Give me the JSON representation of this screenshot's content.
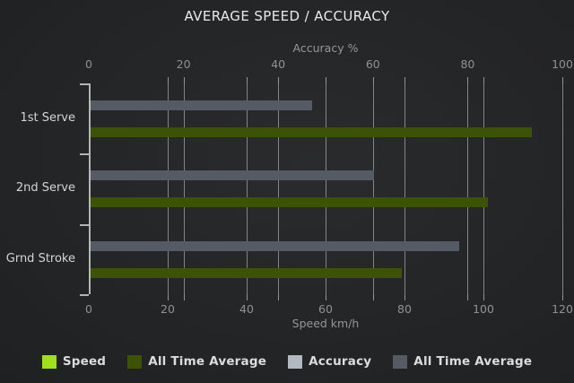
{
  "chart_data": {
    "type": "bar",
    "orientation": "horizontal",
    "title": "AVERAGE SPEED / ACCURACY",
    "categories": [
      "1st Serve",
      "2nd Serve",
      "Grnd Stroke"
    ],
    "series": [
      {
        "name": "Speed",
        "axis": "bottom",
        "color": "#9ee01a",
        "values": [
          null,
          null,
          null
        ]
      },
      {
        "name": "All Time Average",
        "axis": "bottom",
        "color": "#3c5205",
        "values": [
          112,
          101,
          79
        ]
      },
      {
        "name": "Accuracy",
        "axis": "top",
        "color": "#b2bac1",
        "values": [
          null,
          null,
          null
        ]
      },
      {
        "name": "All Time Average",
        "axis": "top",
        "color": "#545b64",
        "values": [
          47,
          60,
          78
        ]
      }
    ],
    "axes": {
      "top": {
        "label": "Accuracy %",
        "min": 0,
        "max": 100,
        "ticks": [
          0,
          20,
          40,
          60,
          80,
          100
        ]
      },
      "bottom": {
        "label": "Speed km/h",
        "min": 0,
        "max": 120,
        "ticks": [
          0,
          20,
          40,
          60,
          80,
          100,
          120
        ]
      }
    },
    "grid": true,
    "legend_position": "bottom",
    "background_color": "#212224",
    "text_color": "#d4d5d6"
  }
}
